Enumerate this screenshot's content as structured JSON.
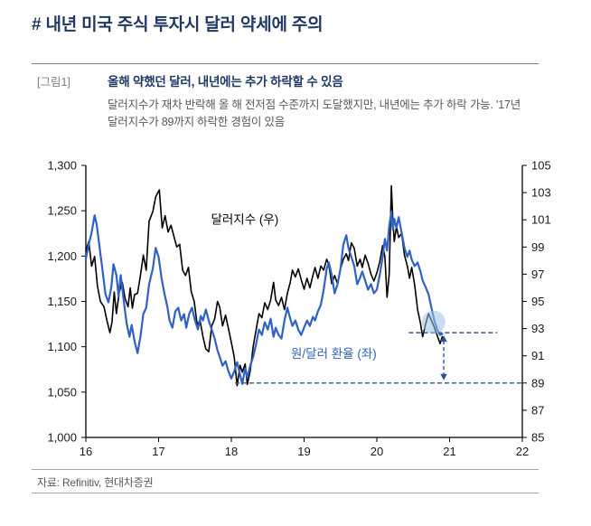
{
  "header": {
    "title": "# 내년 미국 주식 투자시 달러 약세에 주의",
    "title_color": "#1F3864"
  },
  "figure": {
    "label": "[그림1]",
    "title": "올해 약했던 달러, 내년에는 추가 하락할 수 있음",
    "description": "달러지수가 재차 반락해 올 해 전저점 수준까지 도달했지만, 내년에는 추가 하락 가능. '17년 달러지수가 89까지 하락한 경험이 있음"
  },
  "footer": {
    "source": "자료: Refinitiv, 현대차증권"
  },
  "chart_data": {
    "type": "line",
    "x_range": [
      16,
      22
    ],
    "x_ticks": [
      "16",
      "17",
      "18",
      "19",
      "20",
      "21",
      "22"
    ],
    "left_axis": {
      "range": [
        1000,
        1300
      ],
      "ticks": [
        "1,300",
        "1,250",
        "1,200",
        "1,150",
        "1,100",
        "1,050",
        "1,000"
      ]
    },
    "right_axis": {
      "range": [
        85,
        105
      ],
      "ticks": [
        "105",
        "103",
        "101",
        "99",
        "97",
        "95",
        "93",
        "91",
        "89",
        "87",
        "85"
      ]
    },
    "annotation_color": "#2F5496",
    "circle_fill": "#9DC3E6",
    "series": [
      {
        "name": "달러지수 (우)",
        "data_name": "dollar-index-line",
        "axis": "right",
        "color": "#000000",
        "width": 1.6,
        "points": [
          [
            16.0,
            98.7
          ],
          [
            16.04,
            99.4
          ],
          [
            16.08,
            97.6
          ],
          [
            16.12,
            98.3
          ],
          [
            16.16,
            96.1
          ],
          [
            16.2,
            95.0
          ],
          [
            16.25,
            94.6
          ],
          [
            16.29,
            93.6
          ],
          [
            16.33,
            92.7
          ],
          [
            16.36,
            93.5
          ],
          [
            16.39,
            95.7
          ],
          [
            16.42,
            94.1
          ],
          [
            16.46,
            95.7
          ],
          [
            16.5,
            96.4
          ],
          [
            16.54,
            95.2
          ],
          [
            16.58,
            94.6
          ],
          [
            16.61,
            96.0
          ],
          [
            16.64,
            94.5
          ],
          [
            16.67,
            95.5
          ],
          [
            16.71,
            95.6
          ],
          [
            16.75,
            96.9
          ],
          [
            16.79,
            98.4
          ],
          [
            16.83,
            97.3
          ],
          [
            16.87,
            100.9
          ],
          [
            16.92,
            101.6
          ],
          [
            16.96,
            102.7
          ],
          [
            17.01,
            103.2
          ],
          [
            17.05,
            100.4
          ],
          [
            17.09,
            101.3
          ],
          [
            17.13,
            100.1
          ],
          [
            17.17,
            100.6
          ],
          [
            17.21,
            99.8
          ],
          [
            17.25,
            99.0
          ],
          [
            17.29,
            99.2
          ],
          [
            17.33,
            97.3
          ],
          [
            17.37,
            96.9
          ],
          [
            17.41,
            97.5
          ],
          [
            17.45,
            95.7
          ],
          [
            17.49,
            95.0
          ],
          [
            17.53,
            93.3
          ],
          [
            17.57,
            93.6
          ],
          [
            17.61,
            92.4
          ],
          [
            17.65,
            91.5
          ],
          [
            17.69,
            91.3
          ],
          [
            17.73,
            93.2
          ],
          [
            17.77,
            93.7
          ],
          [
            17.81,
            95.0
          ],
          [
            17.84,
            94.6
          ],
          [
            17.88,
            93.2
          ],
          [
            17.92,
            94.0
          ],
          [
            17.96,
            93.0
          ],
          [
            18.0,
            92.0
          ],
          [
            18.04,
            90.9
          ],
          [
            18.08,
            88.8
          ],
          [
            18.12,
            90.3
          ],
          [
            18.15,
            89.8
          ],
          [
            18.19,
            90.4
          ],
          [
            18.22,
            88.9
          ],
          [
            18.26,
            89.9
          ],
          [
            18.3,
            91.7
          ],
          [
            18.34,
            92.9
          ],
          [
            18.38,
            94.1
          ],
          [
            18.42,
            93.8
          ],
          [
            18.46,
            94.9
          ],
          [
            18.5,
            94.4
          ],
          [
            18.54,
            95.1
          ],
          [
            18.58,
            96.4
          ],
          [
            18.61,
            95.1
          ],
          [
            18.65,
            94.7
          ],
          [
            18.69,
            95.3
          ],
          [
            18.73,
            94.4
          ],
          [
            18.77,
            95.6
          ],
          [
            18.81,
            96.4
          ],
          [
            18.84,
            97.3
          ],
          [
            18.88,
            96.8
          ],
          [
            18.92,
            97.4
          ],
          [
            18.96,
            96.6
          ],
          [
            19.0,
            95.9
          ],
          [
            19.04,
            96.7
          ],
          [
            19.08,
            96.0
          ],
          [
            19.12,
            96.9
          ],
          [
            19.15,
            97.5
          ],
          [
            19.19,
            96.7
          ],
          [
            19.23,
            97.6
          ],
          [
            19.27,
            97.3
          ],
          [
            19.31,
            98.1
          ],
          [
            19.34,
            97.7
          ],
          [
            19.38,
            96.3
          ],
          [
            19.42,
            96.9
          ],
          [
            19.46,
            96.3
          ],
          [
            19.5,
            97.4
          ],
          [
            19.54,
            98.1
          ],
          [
            19.58,
            98.5
          ],
          [
            19.61,
            98.0
          ],
          [
            19.65,
            99.3
          ],
          [
            19.69,
            98.9
          ],
          [
            19.73,
            97.6
          ],
          [
            19.77,
            98.1
          ],
          [
            19.8,
            97.5
          ],
          [
            19.84,
            98.4
          ],
          [
            19.88,
            97.8
          ],
          [
            19.92,
            97.0
          ],
          [
            19.96,
            96.5
          ],
          [
            20.0,
            97.1
          ],
          [
            20.04,
            97.9
          ],
          [
            20.08,
            99.1
          ],
          [
            20.11,
            98.3
          ],
          [
            20.14,
            95.3
          ],
          [
            20.17,
            97.0
          ],
          [
            20.2,
            103.5
          ],
          [
            20.22,
            101.0
          ],
          [
            20.24,
            99.4
          ],
          [
            20.27,
            100.5
          ],
          [
            20.3,
            99.7
          ],
          [
            20.34,
            100.0
          ],
          [
            20.38,
            98.4
          ],
          [
            20.42,
            97.6
          ],
          [
            20.45,
            96.7
          ],
          [
            20.48,
            97.5
          ],
          [
            20.52,
            96.2
          ],
          [
            20.56,
            94.4
          ],
          [
            20.6,
            93.4
          ],
          [
            20.63,
            92.4
          ],
          [
            20.67,
            93.3
          ],
          [
            20.71,
            94.1
          ],
          [
            20.75,
            93.6
          ],
          [
            20.79,
            93.1
          ],
          [
            20.83,
            92.5
          ],
          [
            20.87,
            91.9
          ],
          [
            20.9,
            92.4
          ]
        ]
      },
      {
        "name": "원/달러 환율 (좌)",
        "data_name": "won-dollar-line",
        "axis": "left",
        "color": "#2F62C4",
        "width": 2.2,
        "points": [
          [
            16.0,
            1197
          ],
          [
            16.04,
            1213
          ],
          [
            16.08,
            1226
          ],
          [
            16.12,
            1245
          ],
          [
            16.15,
            1234
          ],
          [
            16.19,
            1209
          ],
          [
            16.23,
            1184
          ],
          [
            16.27,
            1158
          ],
          [
            16.31,
            1149
          ],
          [
            16.35,
            1166
          ],
          [
            16.38,
            1191
          ],
          [
            16.42,
            1179
          ],
          [
            16.45,
            1156
          ],
          [
            16.48,
            1179
          ],
          [
            16.52,
            1151
          ],
          [
            16.56,
            1126
          ],
          [
            16.6,
            1111
          ],
          [
            16.63,
            1124
          ],
          [
            16.67,
            1106
          ],
          [
            16.71,
            1093
          ],
          [
            16.75,
            1111
          ],
          [
            16.79,
            1136
          ],
          [
            16.83,
            1143
          ],
          [
            16.87,
            1169
          ],
          [
            16.92,
            1186
          ],
          [
            16.96,
            1209
          ],
          [
            17.0,
            1199
          ],
          [
            17.04,
            1176
          ],
          [
            17.08,
            1159
          ],
          [
            17.12,
            1144
          ],
          [
            17.15,
            1129
          ],
          [
            17.19,
            1121
          ],
          [
            17.23,
            1139
          ],
          [
            17.27,
            1143
          ],
          [
            17.31,
            1129
          ],
          [
            17.35,
            1136
          ],
          [
            17.38,
            1121
          ],
          [
            17.42,
            1136
          ],
          [
            17.46,
            1143
          ],
          [
            17.5,
            1129
          ],
          [
            17.54,
            1119
          ],
          [
            17.58,
            1134
          ],
          [
            17.61,
            1129
          ],
          [
            17.65,
            1141
          ],
          [
            17.69,
            1129
          ],
          [
            17.73,
            1119
          ],
          [
            17.77,
            1109
          ],
          [
            17.81,
            1096
          ],
          [
            17.84,
            1089
          ],
          [
            17.88,
            1079
          ],
          [
            17.92,
            1084
          ],
          [
            17.96,
            1073
          ],
          [
            18.0,
            1065
          ],
          [
            18.04,
            1073
          ],
          [
            18.08,
            1083
          ],
          [
            18.12,
            1069
          ],
          [
            18.15,
            1059
          ],
          [
            18.19,
            1076
          ],
          [
            18.22,
            1066
          ],
          [
            18.26,
            1079
          ],
          [
            18.3,
            1089
          ],
          [
            18.34,
            1103
          ],
          [
            18.38,
            1119
          ],
          [
            18.42,
            1113
          ],
          [
            18.46,
            1127
          ],
          [
            18.5,
            1119
          ],
          [
            18.54,
            1131
          ],
          [
            18.58,
            1111
          ],
          [
            18.61,
            1121
          ],
          [
            18.65,
            1113
          ],
          [
            18.69,
            1109
          ],
          [
            18.73,
            1129
          ],
          [
            18.77,
            1143
          ],
          [
            18.81,
            1131
          ],
          [
            18.84,
            1123
          ],
          [
            18.88,
            1129
          ],
          [
            18.92,
            1119
          ],
          [
            18.96,
            1113
          ],
          [
            19.0,
            1121
          ],
          [
            19.04,
            1129
          ],
          [
            19.08,
            1123
          ],
          [
            19.12,
            1133
          ],
          [
            19.15,
            1129
          ],
          [
            19.19,
            1139
          ],
          [
            19.23,
            1146
          ],
          [
            19.27,
            1163
          ],
          [
            19.31,
            1186
          ],
          [
            19.34,
            1193
          ],
          [
            19.38,
            1179
          ],
          [
            19.42,
            1159
          ],
          [
            19.46,
            1169
          ],
          [
            19.5,
            1186
          ],
          [
            19.54,
            1213
          ],
          [
            19.58,
            1223
          ],
          [
            19.61,
            1209
          ],
          [
            19.65,
            1199
          ],
          [
            19.69,
            1189
          ],
          [
            19.73,
            1169
          ],
          [
            19.77,
            1176
          ],
          [
            19.8,
            1183
          ],
          [
            19.84,
            1173
          ],
          [
            19.88,
            1163
          ],
          [
            19.92,
            1169
          ],
          [
            19.96,
            1159
          ],
          [
            20.0,
            1163
          ],
          [
            20.04,
            1179
          ],
          [
            20.08,
            1199
          ],
          [
            20.11,
            1219
          ],
          [
            20.14,
            1206
          ],
          [
            20.17,
            1233
          ],
          [
            20.2,
            1249
          ],
          [
            20.22,
            1229
          ],
          [
            20.24,
            1241
          ],
          [
            20.27,
            1231
          ],
          [
            20.3,
            1243
          ],
          [
            20.34,
            1226
          ],
          [
            20.38,
            1209
          ],
          [
            20.42,
            1199
          ],
          [
            20.45,
            1206
          ],
          [
            20.48,
            1196
          ],
          [
            20.52,
            1189
          ],
          [
            20.56,
            1193
          ],
          [
            20.6,
            1183
          ],
          [
            20.63,
            1173
          ],
          [
            20.67,
            1166
          ],
          [
            20.71,
            1158
          ],
          [
            20.75,
            1143
          ],
          [
            20.79,
            1129
          ],
          [
            20.83,
            1119
          ],
          [
            20.87,
            1113
          ],
          [
            20.9,
            1114
          ]
        ]
      }
    ],
    "labels": [
      {
        "text": "달러지수 (우)",
        "name": "dollar-index-label",
        "x": 17.72,
        "axis": "right",
        "value": 101.0,
        "color": "#000000"
      },
      {
        "text": "원/달러 환율 (좌)",
        "name": "won-dollar-label",
        "x": 18.82,
        "axis": "left",
        "value": 1092,
        "color": "#2F62C4"
      }
    ],
    "annotations": [
      {
        "type": "hline",
        "name": "current-level-dashed-line",
        "axis": "right",
        "value": 92.7,
        "x1": 20.44,
        "x2": 21.65
      },
      {
        "type": "hline",
        "name": "level-89-dashed-line",
        "axis": "right",
        "value": 89.0,
        "x1": 18.05,
        "x2": 22.0
      },
      {
        "type": "varrow",
        "name": "downside-arrow",
        "x": 20.92,
        "axis": "right",
        "v1": 92.7,
        "v2": 89.0
      },
      {
        "type": "circle",
        "name": "endpoint-highlight-circle",
        "x": 20.78,
        "axis": "left",
        "value": 1127,
        "r": 13
      }
    ]
  }
}
